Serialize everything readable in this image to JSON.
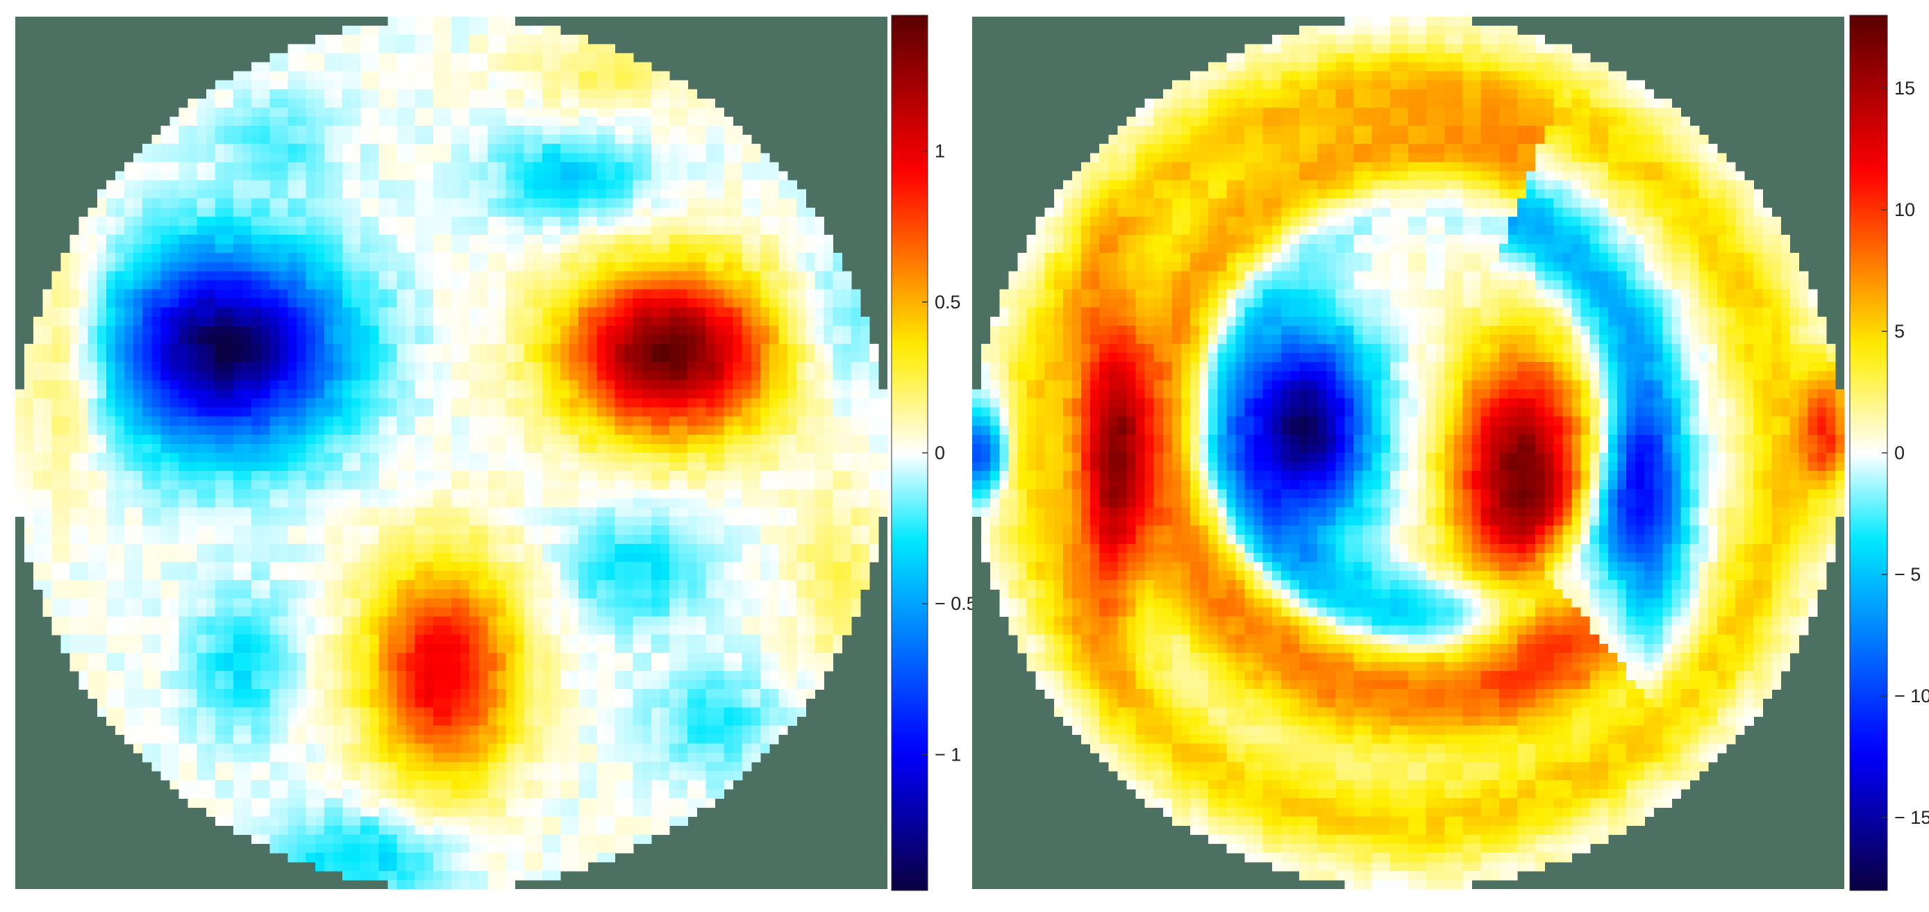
{
  "colors": {
    "background": "#4c7062",
    "colormap": "jet-with-white-center",
    "stops": [
      "#0a0040",
      "#0000ff",
      "#00e8ff",
      "#ffffff",
      "#ffee00",
      "#ff0000",
      "#5a0000"
    ]
  },
  "chart_data": [
    {
      "type": "heatmap",
      "shape": "circular",
      "colorbar": {
        "range": [
          -1.45,
          1.45
        ],
        "ticks": [
          -1,
          -0.5,
          0,
          0.5,
          1
        ],
        "tick_labels": [
          "− 1",
          "− 0.5",
          "0",
          "0.5",
          "1"
        ]
      },
      "blobs": [
        {
          "x": -0.52,
          "y": 0.24,
          "value": -1.4,
          "rx": 0.26,
          "ry": 0.22
        },
        {
          "x": 0.5,
          "y": 0.23,
          "value": 1.4,
          "rx": 0.24,
          "ry": 0.19
        },
        {
          "x": -0.02,
          "y": -0.5,
          "value": 1.0,
          "rx": 0.17,
          "ry": 0.25
        },
        {
          "x": 0.27,
          "y": 0.63,
          "value": -0.38,
          "rx": 0.17,
          "ry": 0.1
        },
        {
          "x": 0.42,
          "y": -0.27,
          "value": -0.3,
          "rx": 0.16,
          "ry": 0.13
        },
        {
          "x": -0.48,
          "y": -0.48,
          "value": -0.3,
          "rx": 0.12,
          "ry": 0.16
        },
        {
          "x": -0.88,
          "y": 0.22,
          "value": 0.3,
          "rx": 0.12,
          "ry": 0.28
        },
        {
          "x": 0.88,
          "y": -0.28,
          "value": 0.2,
          "rx": 0.1,
          "ry": 0.22
        },
        {
          "x": 0.35,
          "y": 0.88,
          "value": 0.2,
          "rx": 0.2,
          "ry": 0.1
        },
        {
          "x": -0.2,
          "y": -0.92,
          "value": -0.35,
          "rx": 0.2,
          "ry": 0.1
        },
        {
          "x": 0.6,
          "y": -0.62,
          "value": -0.25,
          "rx": 0.14,
          "ry": 0.12
        },
        {
          "x": -0.4,
          "y": 0.72,
          "value": -0.2,
          "rx": 0.14,
          "ry": 0.1
        },
        {
          "x": 0.88,
          "y": 0.3,
          "value": -0.2,
          "rx": 0.1,
          "ry": 0.18
        }
      ]
    },
    {
      "type": "heatmap",
      "shape": "circular",
      "colorbar": {
        "range": [
          -18,
          18
        ],
        "ticks": [
          -15,
          -10,
          -5,
          0,
          5,
          10,
          15
        ],
        "tick_labels": [
          "− 15",
          "− 10",
          "− 5",
          "0",
          "5",
          "10",
          "15"
        ]
      },
      "rings": [
        {
          "cx": 0.0,
          "cy": 0.0,
          "r": 0.85,
          "width": 0.1,
          "value": 5,
          "theta0": 0.0,
          "span": 6.283
        },
        {
          "cx": 0.05,
          "cy": 0.05,
          "r": 0.6,
          "width": 0.14,
          "value": 8,
          "theta0": 1.2,
          "span": 4.2
        },
        {
          "cx": 0.05,
          "cy": 0.1,
          "r": 0.48,
          "width": 0.09,
          "value": -6,
          "theta0": 0.0,
          "span": 6.283
        }
      ],
      "blobs": [
        {
          "x": -0.68,
          "y": -0.02,
          "value": 13,
          "rx": 0.08,
          "ry": 0.34
        },
        {
          "x": -0.24,
          "y": 0.06,
          "value": -17,
          "rx": 0.15,
          "ry": 0.22
        },
        {
          "x": 0.26,
          "y": -0.06,
          "value": 17,
          "rx": 0.16,
          "ry": 0.3
        },
        {
          "x": 0.55,
          "y": -0.15,
          "value": -9,
          "rx": 0.09,
          "ry": 0.25
        },
        {
          "x": 0.96,
          "y": 0.05,
          "value": 9,
          "rx": 0.06,
          "ry": 0.15
        },
        {
          "x": -0.98,
          "y": 0.0,
          "value": -10,
          "rx": 0.06,
          "ry": 0.1
        }
      ]
    }
  ]
}
